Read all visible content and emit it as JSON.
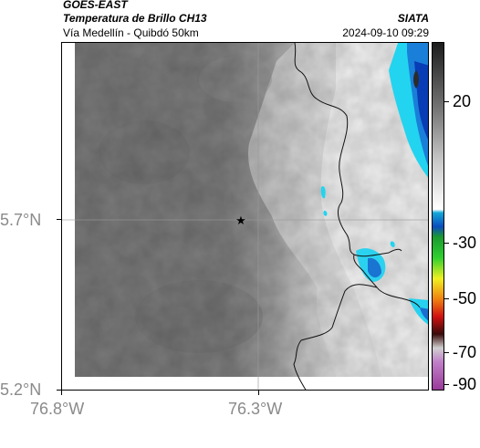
{
  "header": {
    "satellite": "GOES-EAST",
    "product": "Temperatura de Brillo CH13",
    "region": "Vía Medellín - Quibdó 50km",
    "brand": "SIATA",
    "timestamp": "2024-09-10 09:29"
  },
  "map": {
    "lat_labels": [
      "5.7°N",
      "5.2°N"
    ],
    "lon_labels": [
      "76.8°W",
      "76.3°W"
    ],
    "marker_icon": "star-icon"
  },
  "colorbar": {
    "labels": [
      "20",
      "-30",
      "-50",
      "-70",
      "-90"
    ]
  },
  "colors": {
    "cold_cloud": "#0050c8",
    "cyan": "#20d0f0",
    "warm_gray": "#7a7a7a"
  }
}
